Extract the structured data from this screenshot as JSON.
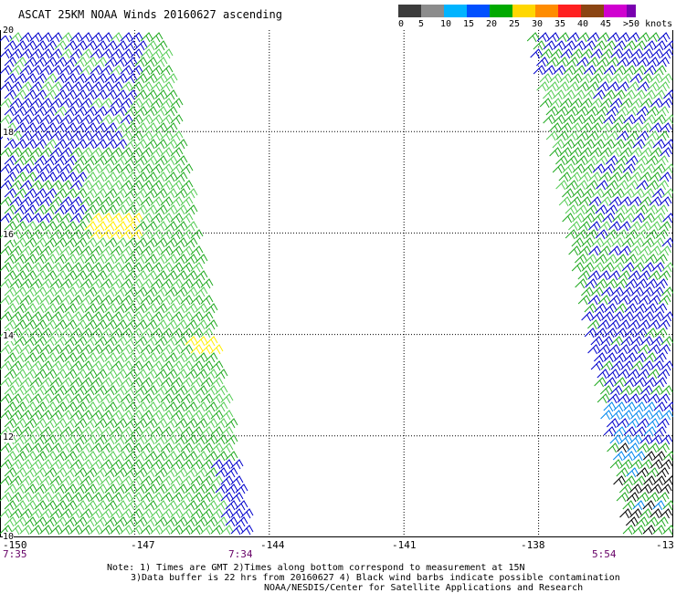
{
  "title": "ASCAT 25KM NOAA Winds 20160627 ascending",
  "legend": {
    "labels": [
      "0",
      "5",
      "10",
      "15",
      "20",
      "25",
      "30",
      "35",
      "40",
      "45",
      ">50 knots"
    ],
    "colors": [
      "#3c3c3c",
      "#8c8c8c",
      "#00b4ff",
      "#0050ff",
      "#00aa00",
      "#ffd700",
      "#ff8c00",
      "#ff2020",
      "#8b4513",
      "#d000d0",
      "#7a00b0"
    ]
  },
  "colors": {
    "wind_blue": "#0000cc",
    "wind_green": "#22aa22",
    "wind_lightgreen": "#55cc55",
    "wind_cyan": "#0088ee",
    "wind_yellow": "#ffee00",
    "contamination": "#000000",
    "time_text": "#660066"
  },
  "map": {
    "lon_min": -150,
    "lon_max": -135,
    "lat_min": 10,
    "lat_max": 20,
    "x_labels": [
      "-150",
      "-147",
      "-144",
      "-141",
      "-138",
      "-13"
    ],
    "y_labels": [
      "20",
      "18",
      "16",
      "14",
      "12",
      "10"
    ]
  },
  "swath_times": [
    {
      "time": "7:35",
      "lon": -150
    },
    {
      "time": "7:34",
      "lon": -145.6
    },
    {
      "time": "5:54",
      "lon": -136.2
    }
  ],
  "notes": {
    "line1": "Note: 1) Times are GMT 2)Times along bottom correspond to measurement at 15N",
    "line2": "3)Data buffer is 22 hrs from 20160627 4) Black wind barbs indicate possible contamination",
    "line3": "NOAA/NESDIS/Center for Satellite Applications and Research"
  }
}
